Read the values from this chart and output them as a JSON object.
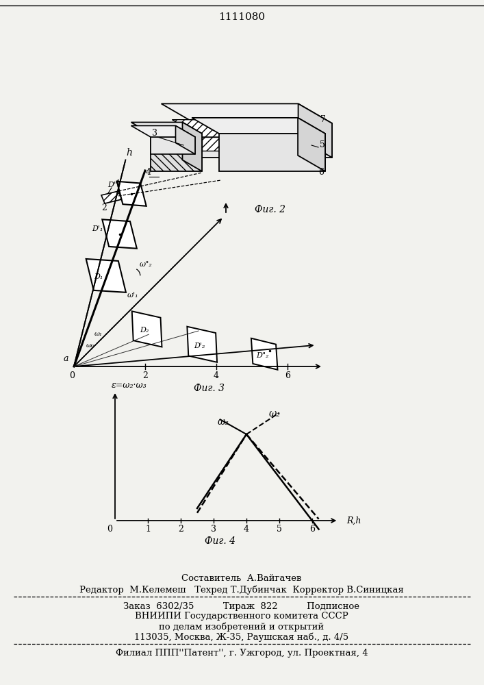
{
  "title": "1111080",
  "bg_color": "#f2f2ee",
  "fig2_label": "Фиг. 2",
  "fig3_label": "Фиг. 3",
  "fig4_label": "Фиг. 4"
}
